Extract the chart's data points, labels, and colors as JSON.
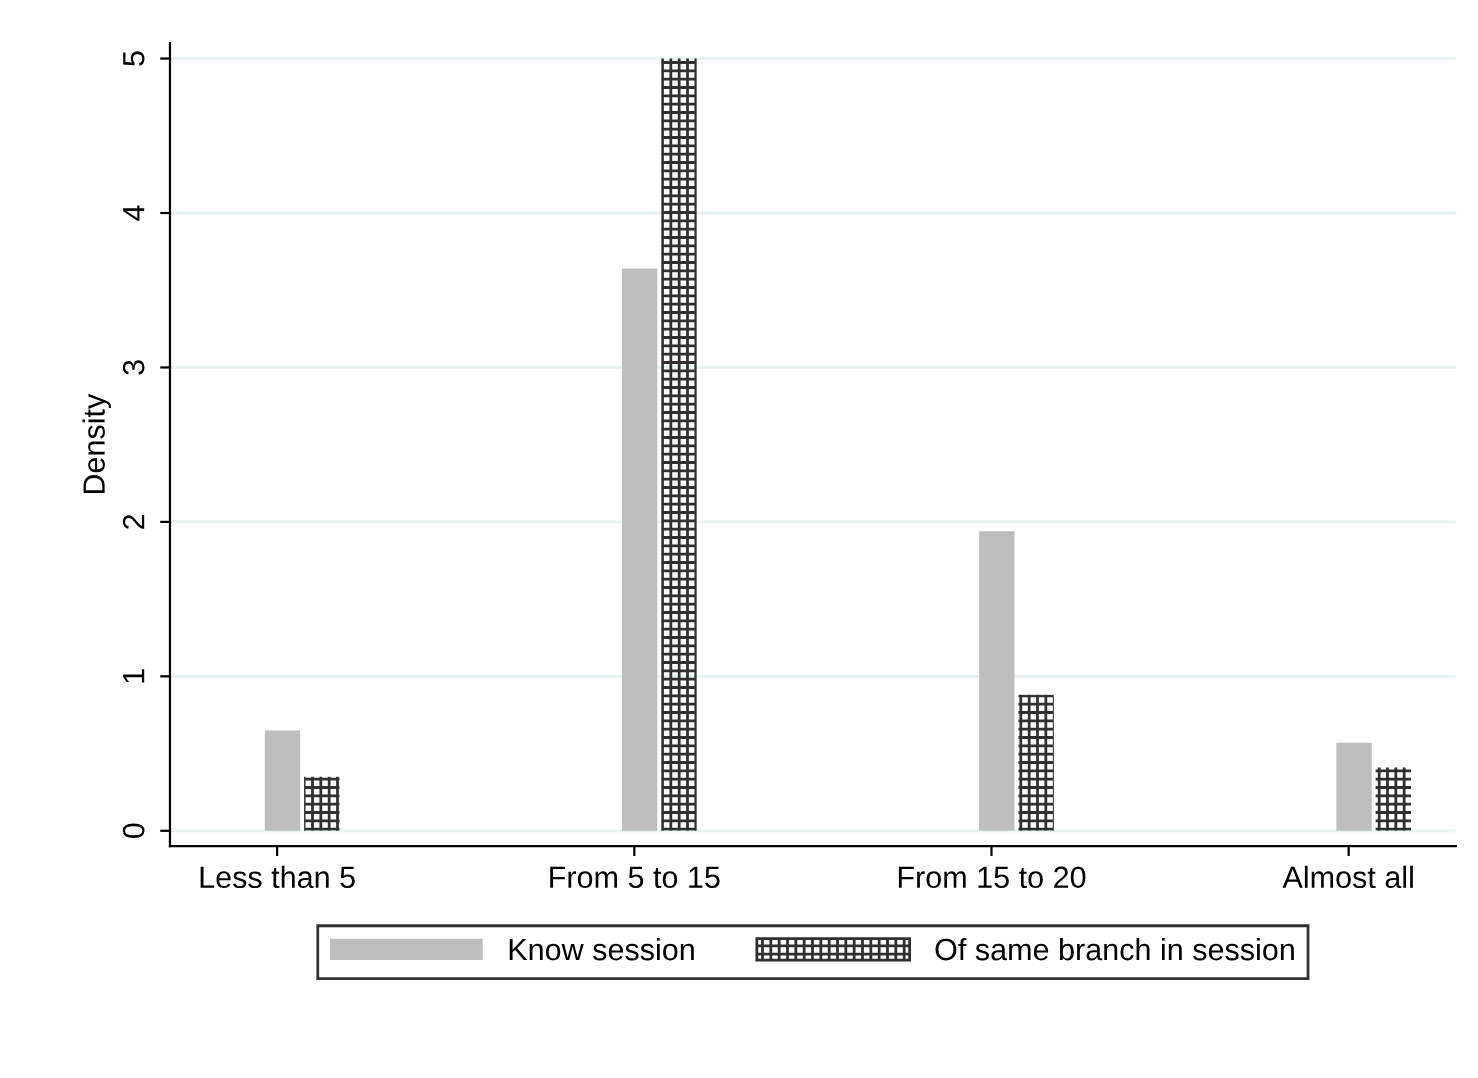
{
  "chart_data": {
    "type": "bar",
    "ylabel": "Density",
    "categories": [
      "Less than 5",
      "From 5 to 15",
      "From 15 to 20",
      "Almost all"
    ],
    "series": [
      {
        "name": "Know session",
        "color": "#bebebe",
        "values": [
          0.65,
          3.64,
          1.94,
          0.57
        ]
      },
      {
        "name": "Of same branch in session",
        "color": "#303030",
        "values": [
          0.35,
          5.0,
          0.88,
          0.41
        ]
      }
    ],
    "ylim": [
      -0.1,
      5.1
    ],
    "yticks": [
      0,
      1,
      2,
      3,
      4,
      5
    ],
    "grid": "y",
    "legend": "bottom"
  }
}
